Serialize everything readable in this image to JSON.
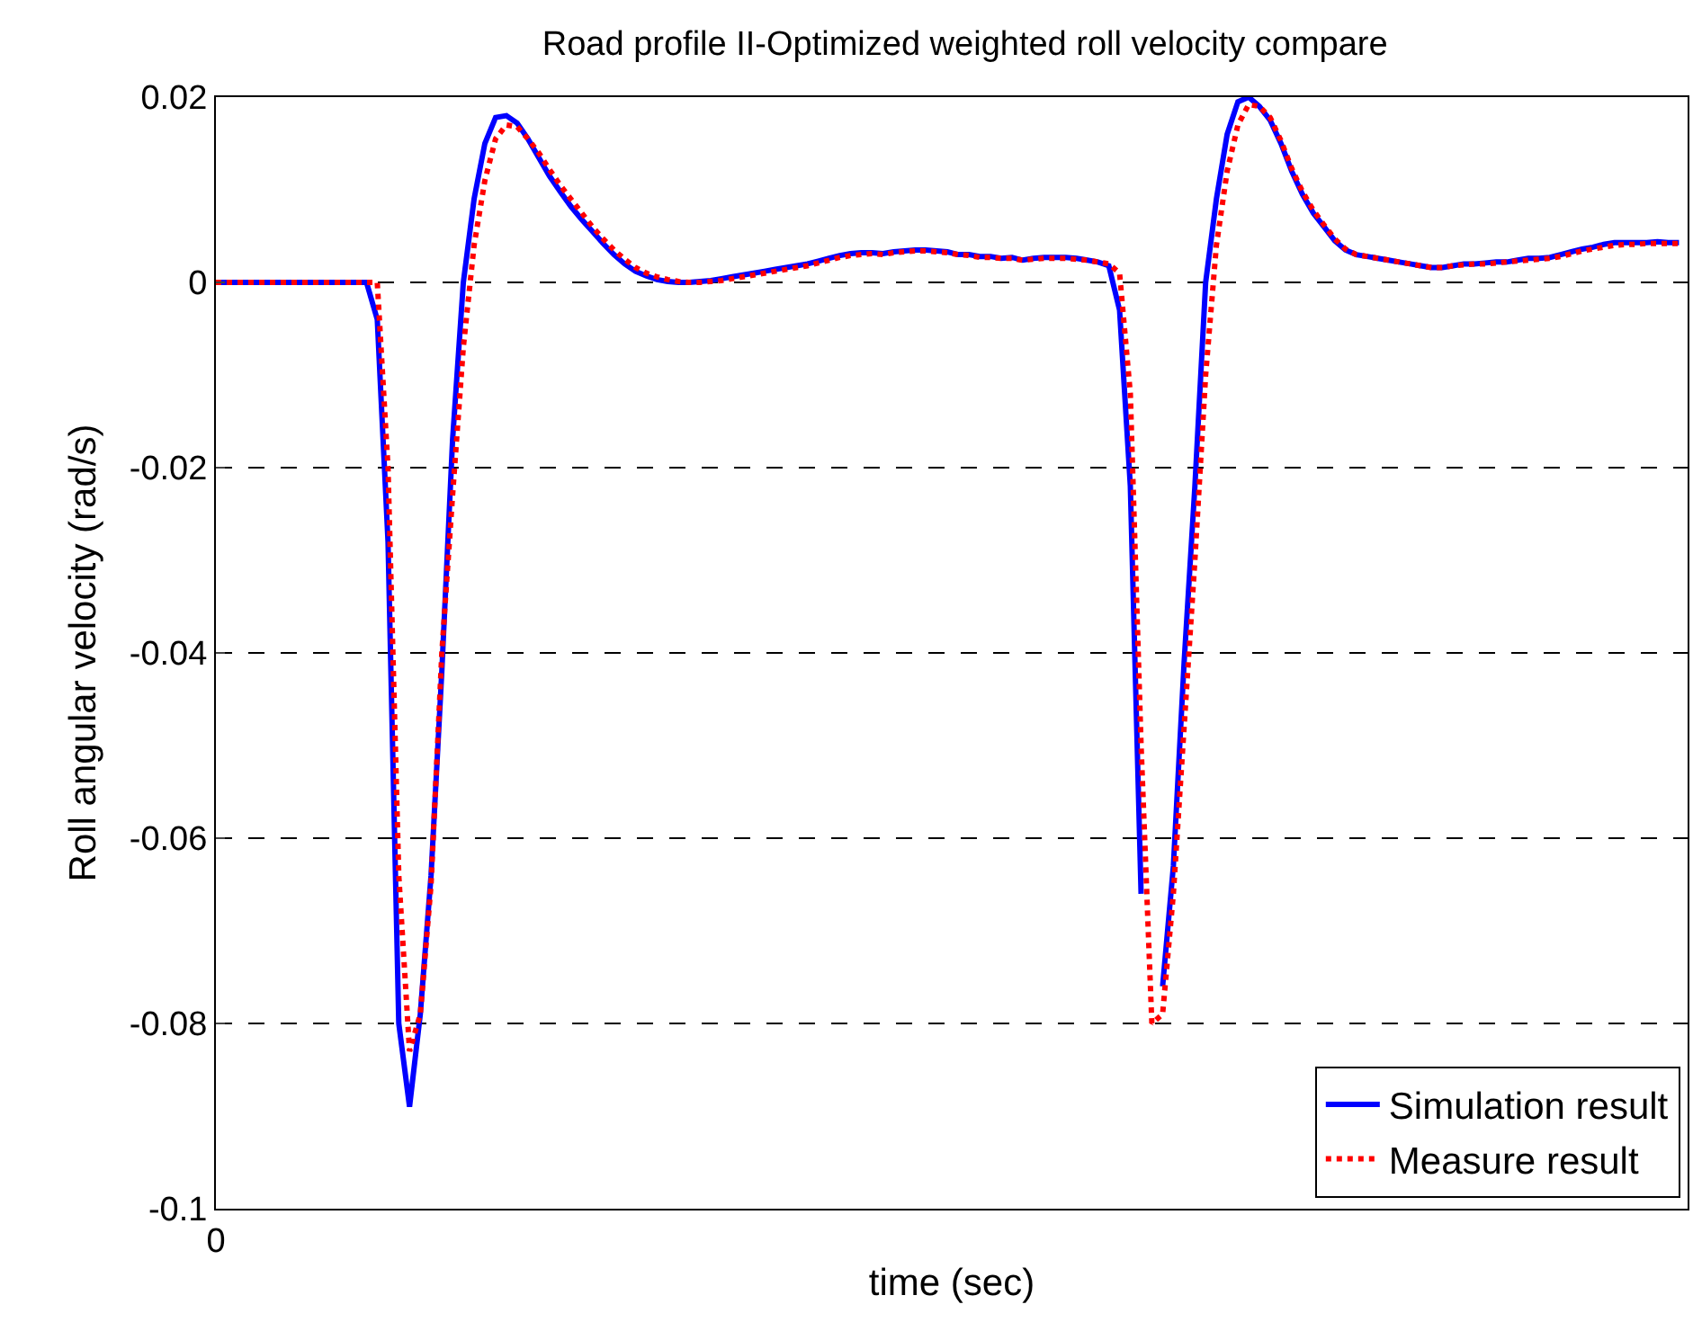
{
  "chart_data": {
    "type": "line",
    "title": "Road profile II-Optimized weighted roll velocity compare",
    "xlabel": "time (sec)",
    "ylabel": "Roll angular velocity (rad/s)",
    "categories": [
      "0",
      null,
      null,
      null,
      null,
      null,
      null,
      null,
      null,
      null,
      null,
      null,
      null,
      null,
      null,
      null,
      null,
      null,
      null,
      null,
      null,
      null,
      null,
      null,
      null,
      null,
      null,
      null,
      null,
      null,
      null,
      null,
      null,
      null,
      null,
      null,
      null,
      null,
      null,
      null,
      null,
      null,
      null,
      null,
      null,
      null,
      null,
      null,
      null,
      null,
      null,
      null,
      null,
      null,
      null,
      null,
      null,
      null,
      null,
      null,
      null,
      null,
      null,
      null,
      null,
      null,
      null,
      null,
      null,
      null,
      null,
      null,
      null,
      null,
      null,
      null,
      null,
      null,
      null,
      null,
      null,
      null,
      null,
      null,
      null,
      null,
      null,
      null,
      null,
      null,
      null,
      null,
      null,
      null,
      null,
      null,
      null,
      null,
      null,
      null,
      null,
      null,
      null,
      null,
      null,
      null,
      null,
      null,
      null,
      null,
      null,
      null,
      null,
      null,
      null,
      null,
      null,
      null,
      null,
      null,
      null,
      null,
      null,
      null,
      null,
      null,
      null,
      null,
      null,
      null,
      null,
      null,
      null,
      null,
      null,
      null,
      null
    ],
    "series": [
      {
        "name": "Simulation result",
        "color": "#0000ff",
        "line_style": "solid",
        "values": [
          0,
          0,
          0,
          0,
          0,
          0,
          0,
          0,
          0,
          0,
          0,
          0,
          0,
          0,
          0,
          -0.004,
          -0.028,
          -0.08,
          -0.089,
          -0.079,
          -0.064,
          -0.042,
          -0.017,
          0,
          0.009,
          0.015,
          0.0178,
          0.018,
          0.0172,
          0.0155,
          0.0135,
          0.0115,
          0.0098,
          0.0082,
          0.0068,
          0.0055,
          0.0042,
          0.003,
          0.002,
          0.0012,
          0.0007,
          0.0003,
          0.0001,
          0,
          0,
          0.0001,
          0.0002,
          0.0004,
          0.0006,
          0.0008,
          0.001,
          0.0012,
          0.0014,
          0.0016,
          0.0018,
          0.002,
          0.0023,
          0.0026,
          0.0029,
          0.0031,
          0.0032,
          0.0032,
          0.0031,
          0.0033,
          0.0034,
          0.0035,
          0.0035,
          0.0034,
          0.0033,
          0.003,
          0.003,
          0.0028,
          0.0028,
          0.0026,
          0.0027,
          0.0024,
          0.0026,
          0.0027,
          0.0027,
          0.0027,
          0.0026,
          0.0024,
          0.0022,
          0.0018,
          -0.003,
          -0.022,
          -0.066,
          null,
          -0.076,
          -0.063,
          -0.041,
          -0.022,
          0,
          0.009,
          0.016,
          0.0195,
          0.02,
          0.019,
          0.0175,
          0.015,
          0.012,
          0.0095,
          0.0075,
          0.006,
          0.0045,
          0.0035,
          0.003,
          0.0028,
          0.0026,
          0.0024,
          0.0022,
          0.002,
          0.0018,
          0.0016,
          0.0016,
          0.0018,
          0.002,
          0.002,
          0.0021,
          0.0022,
          0.0022,
          0.0024,
          0.0026,
          0.0026,
          0.0027,
          0.003,
          0.0033,
          0.0036,
          0.0038,
          0.0041,
          0.0043,
          0.0043,
          0.0043,
          0.0043,
          0.0044,
          0.0043,
          0.0043
        ]
      },
      {
        "name": "Measure result",
        "color": "#ff0000",
        "line_style": "dotted",
        "values": [
          0,
          0,
          0,
          0,
          0,
          0,
          0,
          0,
          0,
          0,
          0,
          0,
          0,
          0,
          0,
          0,
          -0.02,
          -0.064,
          -0.083,
          -0.079,
          -0.065,
          -0.04,
          -0.023,
          -0.007,
          0.004,
          0.011,
          0.0155,
          0.017,
          0.0168,
          0.0155,
          0.014,
          0.0122,
          0.0105,
          0.009,
          0.0075,
          0.006,
          0.0047,
          0.0035,
          0.0025,
          0.0016,
          0.001,
          0.0006,
          0.0003,
          0.0001,
          0,
          0,
          0.0001,
          0.0002,
          0.0004,
          0.0006,
          0.0008,
          0.001,
          0.0012,
          0.0014,
          0.0016,
          0.0018,
          0.0021,
          0.0024,
          0.0027,
          0.0029,
          0.003,
          0.0031,
          0.003,
          0.0032,
          0.0033,
          0.0034,
          0.0034,
          0.0033,
          0.0032,
          0.003,
          0.0029,
          0.0027,
          0.0027,
          0.0026,
          0.0026,
          0.0024,
          0.0025,
          0.0026,
          0.0026,
          0.0026,
          0.0025,
          0.0024,
          0.0022,
          0.002,
          0.001,
          -0.012,
          -0.05,
          -0.08,
          -0.079,
          -0.066,
          -0.048,
          -0.03,
          -0.01,
          0.004,
          0.012,
          0.017,
          0.0192,
          0.019,
          0.0178,
          0.0153,
          0.0123,
          0.0098,
          0.0078,
          0.0062,
          0.0047,
          0.0036,
          0.003,
          0.0028,
          0.0026,
          0.0024,
          0.0022,
          0.002,
          0.0018,
          0.0016,
          0.0016,
          0.0018,
          0.0019,
          0.002,
          0.002,
          0.0021,
          0.0022,
          0.0023,
          0.0024,
          0.0025,
          0.0026,
          0.0028,
          0.0031,
          0.0034,
          0.0036,
          0.0038,
          0.004,
          0.0041,
          0.0041,
          0.0042,
          0.0042,
          0.0042,
          0.0042
        ]
      }
    ],
    "ylim": [
      -0.1,
      0.02
    ],
    "yticks": [
      0.02,
      0,
      -0.02,
      -0.04,
      -0.06,
      -0.08,
      -0.1
    ],
    "grid": "y",
    "legend": "bottom right",
    "marker": "none"
  }
}
